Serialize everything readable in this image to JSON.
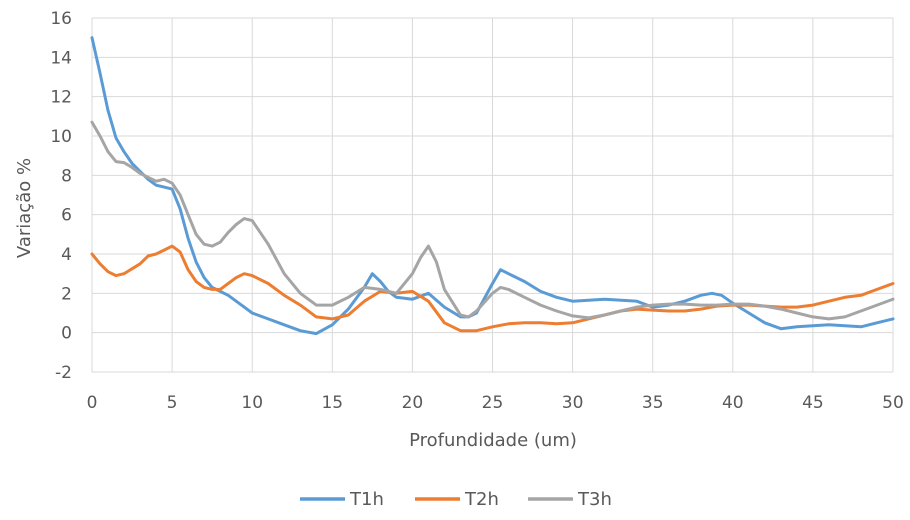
{
  "chart_data": {
    "type": "line",
    "title": "",
    "xlabel": "Profundidade (um)",
    "ylabel": "Variação %",
    "xlim": [
      0,
      50
    ],
    "ylim": [
      -2,
      16
    ],
    "xticks": [
      0,
      5,
      10,
      15,
      20,
      25,
      30,
      35,
      40,
      45,
      50
    ],
    "yticks": [
      -2,
      0,
      2,
      4,
      6,
      8,
      10,
      12,
      14,
      16
    ],
    "grid": true,
    "legend_position": "bottom",
    "series": [
      {
        "name": "T1h",
        "color": "#5b9bd5",
        "points": [
          [
            0,
            15
          ],
          [
            0.5,
            13.2
          ],
          [
            1,
            11.3
          ],
          [
            1.5,
            9.9
          ],
          [
            2,
            9.2
          ],
          [
            2.5,
            8.6
          ],
          [
            3,
            8.2
          ],
          [
            3.5,
            7.8
          ],
          [
            4,
            7.5
          ],
          [
            4.5,
            7.4
          ],
          [
            5,
            7.3
          ],
          [
            5.5,
            6.3
          ],
          [
            6,
            4.8
          ],
          [
            6.5,
            3.6
          ],
          [
            7,
            2.8
          ],
          [
            7.5,
            2.3
          ],
          [
            8,
            2.1
          ],
          [
            8.5,
            1.9
          ],
          [
            9,
            1.6
          ],
          [
            9.5,
            1.3
          ],
          [
            10,
            1.0
          ],
          [
            11,
            0.7
          ],
          [
            12,
            0.4
          ],
          [
            13,
            0.1
          ],
          [
            14,
            -0.05
          ],
          [
            15,
            0.4
          ],
          [
            16,
            1.2
          ],
          [
            17,
            2.3
          ],
          [
            17.5,
            3.0
          ],
          [
            18,
            2.6
          ],
          [
            18.5,
            2.1
          ],
          [
            19,
            1.8
          ],
          [
            20,
            1.7
          ],
          [
            21,
            2.0
          ],
          [
            22,
            1.3
          ],
          [
            23,
            0.8
          ],
          [
            23.5,
            0.8
          ],
          [
            24,
            1.0
          ],
          [
            25,
            2.5
          ],
          [
            25.5,
            3.2
          ],
          [
            26,
            3.0
          ],
          [
            27,
            2.6
          ],
          [
            28,
            2.1
          ],
          [
            29,
            1.8
          ],
          [
            30,
            1.6
          ],
          [
            32,
            1.7
          ],
          [
            34,
            1.6
          ],
          [
            35,
            1.3
          ],
          [
            36,
            1.4
          ],
          [
            37,
            1.6
          ],
          [
            38,
            1.9
          ],
          [
            38.7,
            2.0
          ],
          [
            39.3,
            1.9
          ],
          [
            40,
            1.5
          ],
          [
            41,
            1.0
          ],
          [
            42,
            0.5
          ],
          [
            43,
            0.2
          ],
          [
            44,
            0.3
          ],
          [
            45,
            0.35
          ],
          [
            46,
            0.4
          ],
          [
            47,
            0.35
          ],
          [
            48,
            0.3
          ],
          [
            49,
            0.5
          ],
          [
            50,
            0.7
          ]
        ]
      },
      {
        "name": "T2h",
        "color": "#ed7d31",
        "points": [
          [
            0,
            4.0
          ],
          [
            0.5,
            3.5
          ],
          [
            1,
            3.1
          ],
          [
            1.5,
            2.9
          ],
          [
            2,
            3.0
          ],
          [
            3,
            3.5
          ],
          [
            3.5,
            3.9
          ],
          [
            4,
            4.0
          ],
          [
            4.5,
            4.2
          ],
          [
            5,
            4.4
          ],
          [
            5.5,
            4.1
          ],
          [
            6,
            3.2
          ],
          [
            6.5,
            2.6
          ],
          [
            7,
            2.3
          ],
          [
            7.5,
            2.2
          ],
          [
            8,
            2.2
          ],
          [
            8.5,
            2.5
          ],
          [
            9,
            2.8
          ],
          [
            9.5,
            3.0
          ],
          [
            10,
            2.9
          ],
          [
            11,
            2.5
          ],
          [
            12,
            1.9
          ],
          [
            13,
            1.4
          ],
          [
            14,
            0.8
          ],
          [
            15,
            0.7
          ],
          [
            16,
            0.9
          ],
          [
            17,
            1.6
          ],
          [
            18,
            2.1
          ],
          [
            19,
            2.0
          ],
          [
            20,
            2.1
          ],
          [
            21,
            1.6
          ],
          [
            22,
            0.5
          ],
          [
            23,
            0.1
          ],
          [
            24,
            0.1
          ],
          [
            25,
            0.3
          ],
          [
            26,
            0.45
          ],
          [
            27,
            0.5
          ],
          [
            28,
            0.5
          ],
          [
            29,
            0.45
          ],
          [
            30,
            0.5
          ],
          [
            31,
            0.7
          ],
          [
            32,
            0.9
          ],
          [
            33,
            1.1
          ],
          [
            34,
            1.2
          ],
          [
            35,
            1.15
          ],
          [
            36,
            1.1
          ],
          [
            37,
            1.1
          ],
          [
            38,
            1.2
          ],
          [
            39,
            1.35
          ],
          [
            40,
            1.4
          ],
          [
            41,
            1.4
          ],
          [
            42,
            1.35
          ],
          [
            43,
            1.3
          ],
          [
            44,
            1.3
          ],
          [
            45,
            1.4
          ],
          [
            46,
            1.6
          ],
          [
            47,
            1.8
          ],
          [
            48,
            1.9
          ],
          [
            49,
            2.2
          ],
          [
            50,
            2.5
          ]
        ]
      },
      {
        "name": "T3h",
        "color": "#a5a5a5",
        "points": [
          [
            0,
            10.7
          ],
          [
            0.5,
            10.0
          ],
          [
            1,
            9.2
          ],
          [
            1.5,
            8.7
          ],
          [
            2,
            8.65
          ],
          [
            2.5,
            8.4
          ],
          [
            3,
            8.1
          ],
          [
            3.5,
            7.9
          ],
          [
            4,
            7.7
          ],
          [
            4.5,
            7.8
          ],
          [
            5,
            7.6
          ],
          [
            5.5,
            7.0
          ],
          [
            6,
            6.0
          ],
          [
            6.5,
            5.0
          ],
          [
            7,
            4.5
          ],
          [
            7.5,
            4.4
          ],
          [
            8,
            4.6
          ],
          [
            8.5,
            5.1
          ],
          [
            9,
            5.5
          ],
          [
            9.5,
            5.8
          ],
          [
            10,
            5.7
          ],
          [
            11,
            4.5
          ],
          [
            12,
            3.0
          ],
          [
            13,
            2.0
          ],
          [
            14,
            1.4
          ],
          [
            15,
            1.4
          ],
          [
            16,
            1.8
          ],
          [
            17,
            2.3
          ],
          [
            18,
            2.2
          ],
          [
            19,
            2.0
          ],
          [
            20,
            3.0
          ],
          [
            20.5,
            3.8
          ],
          [
            21,
            4.4
          ],
          [
            21.5,
            3.6
          ],
          [
            22,
            2.2
          ],
          [
            23,
            0.9
          ],
          [
            23.5,
            0.8
          ],
          [
            24,
            1.1
          ],
          [
            25,
            2.0
          ],
          [
            25.5,
            2.3
          ],
          [
            26,
            2.2
          ],
          [
            27,
            1.8
          ],
          [
            28,
            1.4
          ],
          [
            29,
            1.1
          ],
          [
            30,
            0.85
          ],
          [
            31,
            0.75
          ],
          [
            32,
            0.9
          ],
          [
            33,
            1.1
          ],
          [
            34,
            1.3
          ],
          [
            35,
            1.4
          ],
          [
            36,
            1.45
          ],
          [
            37,
            1.45
          ],
          [
            38,
            1.4
          ],
          [
            39,
            1.4
          ],
          [
            40,
            1.45
          ],
          [
            41,
            1.45
          ],
          [
            42,
            1.35
          ],
          [
            43,
            1.2
          ],
          [
            44,
            1.0
          ],
          [
            45,
            0.8
          ],
          [
            46,
            0.7
          ],
          [
            47,
            0.8
          ],
          [
            48,
            1.1
          ],
          [
            49,
            1.4
          ],
          [
            50,
            1.7
          ]
        ]
      }
    ]
  }
}
